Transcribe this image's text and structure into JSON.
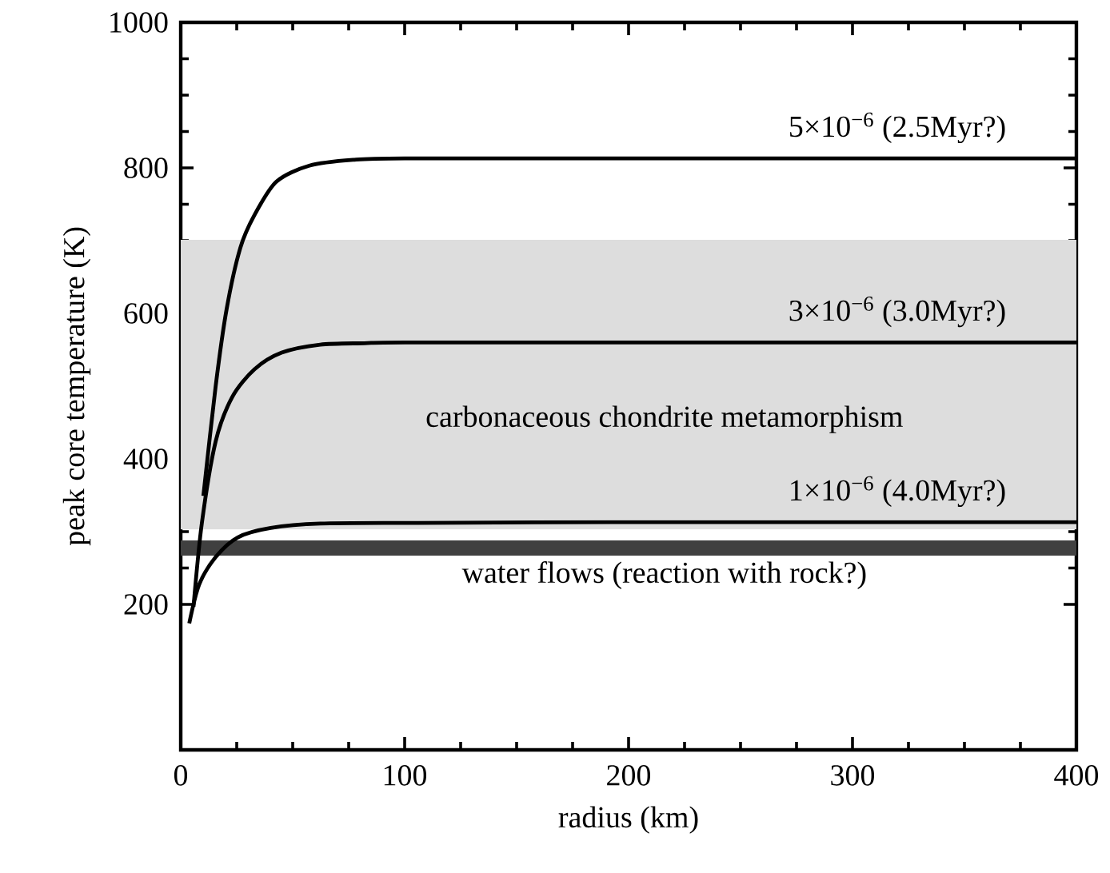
{
  "chart_data": {
    "type": "line",
    "xlabel": "radius (km)",
    "ylabel": "peak core temperature (K)",
    "xlim": [
      0,
      400
    ],
    "xticks": [
      0,
      100,
      200,
      300,
      400
    ],
    "ylim": [
      0,
      1000
    ],
    "yticks": [
      200,
      400,
      600,
      800,
      1000
    ],
    "tick_labels": "xy",
    "grid": false,
    "marker": "none",
    "line_style": "solid",
    "series": [
      {
        "color": "#000000",
        "x": [
          10.1,
          15.6,
          20.5,
          26.6,
          32.9,
          42.7,
          57.4,
          77,
          100,
          200,
          300,
          400
        ],
        "values": [
          349,
          500,
          606,
          690,
          735,
          781,
          803,
          811,
          813,
          813,
          813,
          813
        ]
      },
      {
        "color": "#000000",
        "x": [
          5.7,
          9.4,
          15.6,
          23,
          32.9,
          45.1,
          62.3,
          82,
          100,
          200,
          300,
          400
        ],
        "values": [
          197,
          311,
          424,
          485,
          523,
          546,
          557,
          559,
          560,
          560,
          560,
          560
        ]
      },
      {
        "color": "#000000",
        "x": [
          3.8,
          8.2,
          15.6,
          25.4,
          40.2,
          62.3,
          106,
          200,
          300,
          400
        ],
        "values": [
          174,
          227,
          265,
          292,
          305,
          311,
          312,
          313,
          313,
          313
        ]
      }
    ],
    "annotations": [
      {
        "text": "5×10$^{−6}$ (2.5Myr?)",
        "y": 813
      },
      {
        "text": "3×10$^{−6}$ (3.0Myr?)",
        "y": 560
      },
      {
        "text": "1×10$^{−6}$ (4.0Myr?)",
        "y": 313
      }
    ],
    "bands": [
      {
        "axis": "y",
        "from": 303,
        "to": 701,
        "label": "carbonaceous chondrite metamorphism",
        "color": "#dddddd"
      },
      {
        "axis": "y",
        "from": 267,
        "to": 288,
        "label": "water flows (reaction with rock?)",
        "color": "#404040"
      }
    ]
  }
}
